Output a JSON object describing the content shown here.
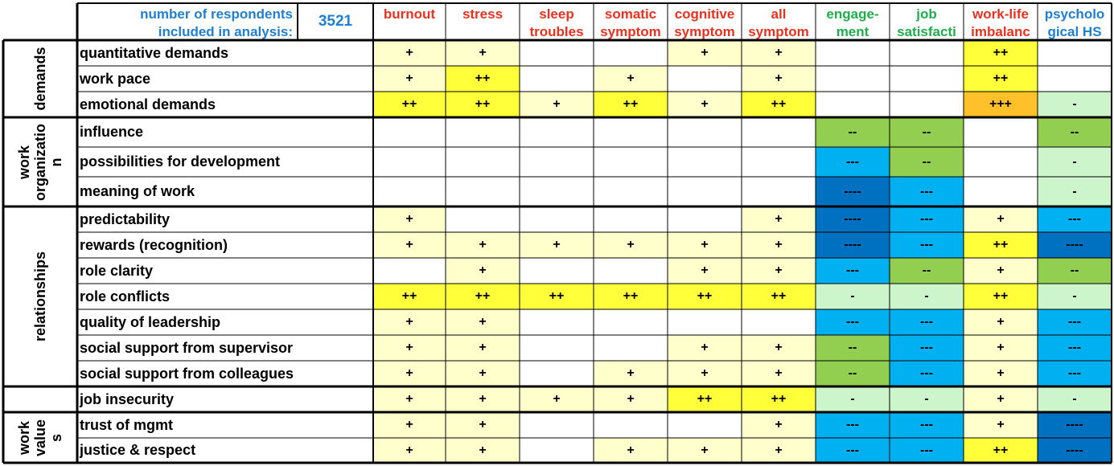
{
  "chart_data": {
    "type": "table",
    "respondents_label_line1": "number of respondents",
    "respondents_label_line2": "included in analysis:",
    "respondents_count": "3521",
    "columns": [
      {
        "line1": "burnout",
        "line2": "",
        "color": "#e8321e"
      },
      {
        "line1": "stress",
        "line2": "",
        "color": "#e8321e"
      },
      {
        "line1": "sleep",
        "line2": "troubles",
        "color": "#e8321e"
      },
      {
        "line1": "somatic",
        "line2": "symptom",
        "color": "#e8321e"
      },
      {
        "line1": "cognitive",
        "line2": "symptom",
        "color": "#e8321e"
      },
      {
        "line1": "all",
        "line2": "symptom",
        "color": "#e8321e"
      },
      {
        "line1": "engage-",
        "line2": "ment",
        "color": "#1fae4b"
      },
      {
        "line1": "job",
        "line2": "satisfacti",
        "color": "#1fae4b"
      },
      {
        "line1": "work-life",
        "line2": "imbalanc",
        "color": "#e8321e"
      },
      {
        "line1": "psycholo",
        "line2": "gical HS",
        "color": "#1f7fd0"
      }
    ],
    "groups": [
      {
        "label_lines": [
          "demands"
        ],
        "rows": [
          0,
          2
        ]
      },
      {
        "label_lines": [
          "work",
          "organizatio",
          "n"
        ],
        "rows": [
          3,
          5
        ]
      },
      {
        "label_lines": [
          "relationships"
        ],
        "rows": [
          6,
          12
        ]
      },
      {
        "label_lines": [
          ""
        ],
        "rows": [
          13,
          13
        ]
      },
      {
        "label_lines": [
          "work",
          "value",
          "s"
        ],
        "rows": [
          14,
          15
        ]
      }
    ],
    "rows": [
      {
        "label": "quantitative demands",
        "values": [
          "+",
          "+",
          "",
          "",
          "+",
          "+",
          "",
          "",
          "++",
          ""
        ]
      },
      {
        "label": "work pace",
        "values": [
          "+",
          "++",
          "",
          "+",
          "",
          "+",
          "",
          "",
          "++",
          ""
        ]
      },
      {
        "label": "emotional demands",
        "values": [
          "++",
          "++",
          "+",
          "++",
          "+",
          "++",
          "",
          "",
          "+++",
          "-"
        ]
      },
      {
        "label": "influence",
        "values": [
          "",
          "",
          "",
          "",
          "",
          "",
          "--",
          "--",
          "",
          "--"
        ]
      },
      {
        "label": "possibilities for development",
        "values": [
          "",
          "",
          "",
          "",
          "",
          "",
          "---",
          "--",
          "",
          "-"
        ]
      },
      {
        "label": "meaning of work",
        "values": [
          "",
          "",
          "",
          "",
          "",
          "",
          "----",
          "---",
          "",
          "-"
        ]
      },
      {
        "label": "predictability",
        "values": [
          "+",
          "",
          "",
          "",
          "",
          "+",
          "----",
          "---",
          "+",
          "---"
        ]
      },
      {
        "label": "rewards (recognition)",
        "values": [
          "+",
          "+",
          "+",
          "+",
          "+",
          "+",
          "----",
          "---",
          "++",
          "----"
        ]
      },
      {
        "label": "role clarity",
        "values": [
          "",
          "+",
          "",
          "",
          "+",
          "+",
          "---",
          "--",
          "+",
          "--"
        ]
      },
      {
        "label": "role conflicts",
        "values": [
          "++",
          "++",
          "++",
          "++",
          "++",
          "++",
          "-",
          "-",
          "++",
          "-"
        ]
      },
      {
        "label": "quality of leadership",
        "values": [
          "+",
          "+",
          "",
          "",
          "",
          "",
          "---",
          "---",
          "+",
          "---"
        ]
      },
      {
        "label": "social support from supervisor",
        "values": [
          "+",
          "+",
          "",
          "",
          "+",
          "+",
          "--",
          "---",
          "+",
          "---"
        ]
      },
      {
        "label": "social support from colleagues",
        "values": [
          "+",
          "+",
          "",
          "+",
          "+",
          "+",
          "--",
          "---",
          "+",
          "---"
        ]
      },
      {
        "label": "job insecurity",
        "values": [
          "+",
          "+",
          "+",
          "+",
          "++",
          "++",
          "-",
          "-",
          "+",
          "-"
        ]
      },
      {
        "label": "trust of mgmt",
        "values": [
          "+",
          "+",
          "",
          "",
          "",
          "+",
          "---",
          "---",
          "+",
          "----"
        ]
      },
      {
        "label": "justice & respect",
        "values": [
          "+",
          "+",
          "",
          "+",
          "+",
          "+",
          "---",
          "---",
          "++",
          "----"
        ]
      }
    ],
    "fill_colors": {
      "": "#ffffff",
      "+": "#ffffcc",
      "++": "#ffff3a",
      "+++": "#ffc02a",
      "-": "#cdf5cc",
      "--": "#92cf50",
      "---": "#00b0f0",
      "----": "#0070c0"
    }
  }
}
